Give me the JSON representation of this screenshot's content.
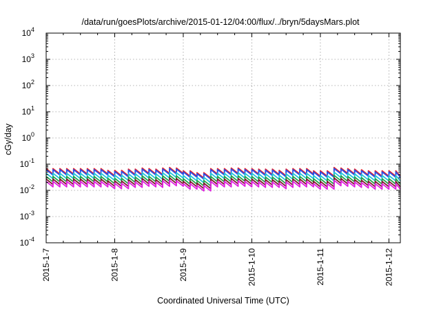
{
  "chart_data": {
    "type": "line",
    "title": "/data/run/goesPlots/archive/2015-01-12/04:00/flux/../bryn/5daysMars.plot",
    "xlabel": "Coordinated Universal Time (UTC)",
    "ylabel": "cGy/day",
    "yscale": "log",
    "ylim": [
      0.0001,
      10000
    ],
    "y_ticks": [
      {
        "value": 0.0001,
        "base": "10",
        "exp": "-4"
      },
      {
        "value": 0.001,
        "base": "10",
        "exp": "-3"
      },
      {
        "value": 0.01,
        "base": "10",
        "exp": "-2"
      },
      {
        "value": 0.1,
        "base": "10",
        "exp": "-1"
      },
      {
        "value": 1,
        "base": "10",
        "exp": "0"
      },
      {
        "value": 10,
        "base": "10",
        "exp": "1"
      },
      {
        "value": 100,
        "base": "10",
        "exp": "2"
      },
      {
        "value": 1000,
        "base": "10",
        "exp": "3"
      },
      {
        "value": 10000,
        "base": "10",
        "exp": "4"
      }
    ],
    "xlim": [
      "2015-01-07T00:00",
      "2015-01-12T04:00"
    ],
    "x_ticks": [
      "2015-1-7",
      "2015-1-8",
      "2015-1-9",
      "2015-1-10",
      "2015-1-11",
      "2015-1-12"
    ],
    "grid": true,
    "legend": "none",
    "sawtooth": {
      "cycles_per_day": 10,
      "drop_fraction": 0.62,
      "peak_scale": [
        1.0,
        1.0,
        1.0,
        1.0,
        1.0,
        1.0,
        1.0,
        1.0,
        1.0,
        0.85,
        0.85,
        0.85,
        0.95,
        0.95,
        1.05,
        1.0,
        0.95,
        1.05,
        1.1,
        1.05,
        0.82,
        0.82,
        0.7,
        0.7,
        1.0,
        1.0,
        1.0,
        1.05,
        1.05,
        1.0,
        1.0,
        0.95,
        0.95,
        0.95,
        0.85,
        0.95,
        1.0,
        1.0,
        1.0,
        0.82,
        0.82,
        0.82,
        1.1,
        1.05,
        1.0,
        0.95,
        0.9,
        0.82,
        0.82,
        0.82,
        0.82,
        0.82,
        0.82,
        0.82,
        0.82,
        0.82,
        0.82,
        0.82,
        0.82,
        0.82,
        0.82,
        0.82,
        0.82,
        0.82,
        0.82,
        0.82,
        0.82,
        0.82,
        0.82,
        0.82,
        0.82,
        0.82,
        0.82,
        0.82,
        0.82,
        0.82,
        0.82,
        0.82,
        0.82,
        0.82,
        0.82,
        0.82,
        0.82,
        0.82,
        0.82,
        0.82,
        0.82,
        0.82,
        0.82,
        0.82,
        0.82,
        0.82,
        0.82,
        0.82,
        0.82,
        0.82,
        0.82,
        0.82,
        0.82,
        0.82,
        0.82,
        0.82,
        0.82,
        0.82
      ]
    },
    "series": [
      {
        "color": "#e8202a",
        "peak": 0.068
      },
      {
        "color": "#2850e8",
        "peak": 0.062
      },
      {
        "color": "#21c4d8",
        "peak": 0.045
      },
      {
        "color": "#22a34a",
        "peak": 0.034
      },
      {
        "color": "#7a1a2a",
        "peak": 0.027
      },
      {
        "color": "#e020e0",
        "peak": 0.022
      }
    ]
  }
}
